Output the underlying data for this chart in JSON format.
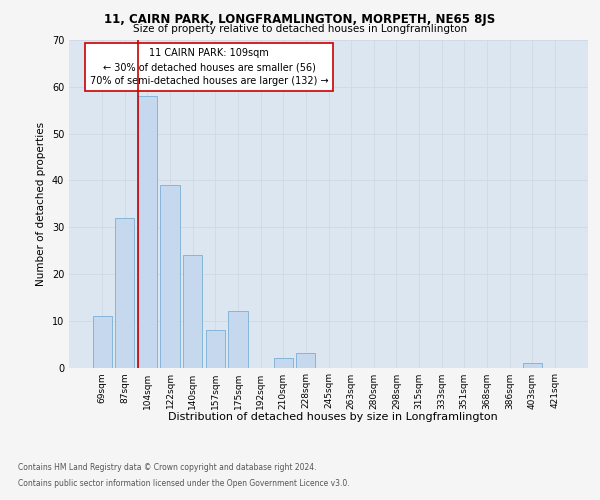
{
  "title": "11, CAIRN PARK, LONGFRAMLINGTON, MORPETH, NE65 8JS",
  "subtitle": "Size of property relative to detached houses in Longframlington",
  "xlabel": "Distribution of detached houses by size in Longframlington",
  "ylabel": "Number of detached properties",
  "categories": [
    "69sqm",
    "87sqm",
    "104sqm",
    "122sqm",
    "140sqm",
    "157sqm",
    "175sqm",
    "192sqm",
    "210sqm",
    "228sqm",
    "245sqm",
    "263sqm",
    "280sqm",
    "298sqm",
    "315sqm",
    "333sqm",
    "351sqm",
    "368sqm",
    "386sqm",
    "403sqm",
    "421sqm"
  ],
  "values": [
    11,
    32,
    58,
    39,
    24,
    8,
    12,
    0,
    2,
    3,
    0,
    0,
    0,
    0,
    0,
    0,
    0,
    0,
    0,
    1,
    0
  ],
  "bar_color": "#c5d8ed",
  "bar_edge_color": "#7aafd4",
  "vline_color": "#cc0000",
  "vline_x_index": 2,
  "annotation_text": "11 CAIRN PARK: 109sqm\n← 30% of detached houses are smaller (56)\n70% of semi-detached houses are larger (132) →",
  "annotation_box_facecolor": "#ffffff",
  "annotation_box_edgecolor": "#cc0000",
  "ylim": [
    0,
    70
  ],
  "yticks": [
    0,
    10,
    20,
    30,
    40,
    50,
    60,
    70
  ],
  "grid_color": "#d0d8e4",
  "background_color": "#dce6f0",
  "fig_facecolor": "#f5f5f5",
  "title_fontsize": 8.5,
  "subtitle_fontsize": 7.5,
  "ylabel_fontsize": 7.5,
  "xlabel_fontsize": 8,
  "tick_fontsize": 6.5,
  "annotation_fontsize": 7,
  "footer_line1": "Contains HM Land Registry data © Crown copyright and database right 2024.",
  "footer_line2": "Contains public sector information licensed under the Open Government Licence v3.0.",
  "footer_fontsize": 5.5
}
